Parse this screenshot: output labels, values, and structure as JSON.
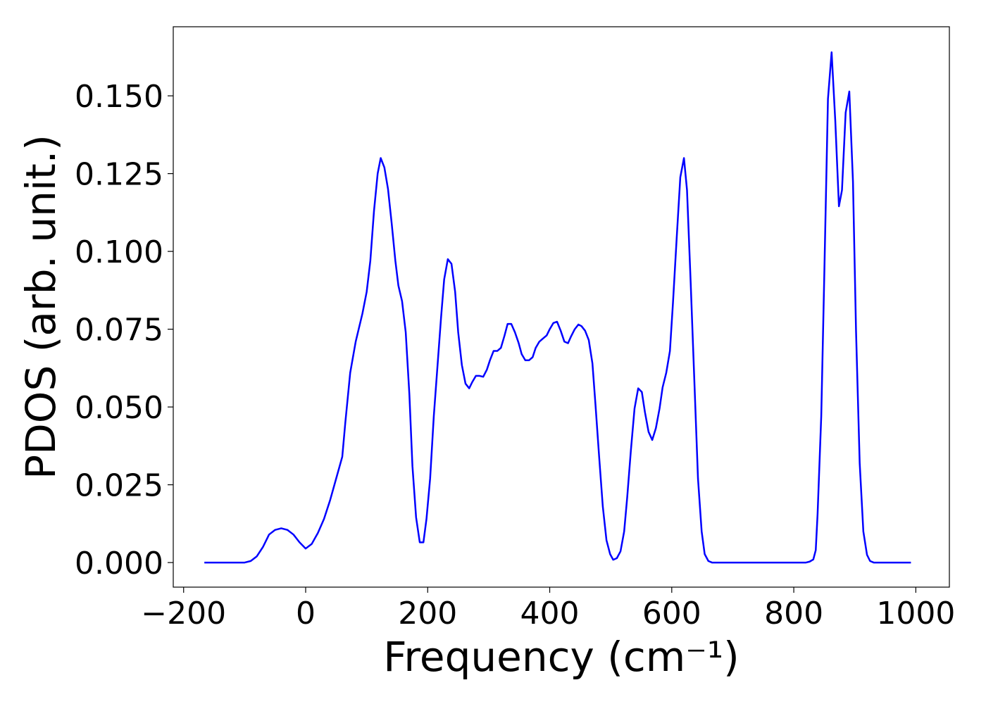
{
  "chart_data": {
    "type": "line",
    "xlabel": "Frequency (cm⁻¹)",
    "ylabel": "PDOS (arb. unit.)",
    "color": "#0000ff",
    "x": [
      -166,
      -100,
      -90,
      -80,
      -70,
      -60,
      -50,
      -40,
      -30,
      -20,
      -10,
      0,
      10,
      20,
      30,
      40,
      50,
      60,
      65,
      73,
      82,
      93,
      100,
      106,
      112,
      118,
      123,
      129,
      135,
      141,
      147,
      152,
      158,
      164,
      170,
      175,
      181,
      187,
      193,
      198,
      204,
      210,
      216,
      222,
      227,
      233,
      239,
      245,
      250,
      256,
      262,
      268,
      273,
      279,
      285,
      291,
      297,
      302,
      308,
      314,
      320,
      326,
      331,
      337,
      343,
      349,
      354,
      360,
      366,
      372,
      377,
      383,
      389,
      395,
      400,
      406,
      412,
      418,
      424,
      430,
      435,
      441,
      447,
      452,
      458,
      464,
      470,
      475,
      481,
      487,
      493,
      499,
      504,
      510,
      516,
      522,
      527,
      533,
      539,
      545,
      551,
      556,
      562,
      568,
      574,
      580,
      585,
      591,
      597,
      602,
      608,
      614,
      620,
      625,
      631,
      637,
      643,
      649,
      654,
      660,
      666,
      820,
      826,
      832,
      836,
      839,
      845,
      850,
      856,
      862,
      868,
      874,
      879,
      885,
      891,
      897,
      902,
      908,
      914,
      920,
      925,
      931,
      992
    ],
    "values": [
      0,
      0,
      0.0005,
      0.002,
      0.005,
      0.009,
      0.0105,
      0.011,
      0.0105,
      0.009,
      0.0065,
      0.0045,
      0.006,
      0.0095,
      0.014,
      0.02,
      0.027,
      0.034,
      0.045,
      0.061,
      0.071,
      0.08,
      0.087,
      0.097,
      0.113,
      0.125,
      0.13,
      0.127,
      0.12,
      0.109,
      0.097,
      0.089,
      0.084,
      0.074,
      0.054,
      0.031,
      0.0145,
      0.0065,
      0.0065,
      0.014,
      0.027,
      0.047,
      0.063,
      0.079,
      0.091,
      0.0975,
      0.096,
      0.087,
      0.074,
      0.0635,
      0.0575,
      0.056,
      0.058,
      0.06,
      0.06,
      0.0597,
      0.062,
      0.065,
      0.068,
      0.068,
      0.069,
      0.073,
      0.0767,
      0.0767,
      0.074,
      0.0706,
      0.067,
      0.065,
      0.065,
      0.066,
      0.069,
      0.071,
      0.072,
      0.073,
      0.075,
      0.077,
      0.0774,
      0.0745,
      0.071,
      0.0705,
      0.0727,
      0.075,
      0.0765,
      0.076,
      0.0745,
      0.0715,
      0.064,
      0.0507,
      0.034,
      0.018,
      0.0072,
      0.0027,
      0.0009,
      0.0014,
      0.0036,
      0.01,
      0.021,
      0.036,
      0.0495,
      0.056,
      0.0548,
      0.0484,
      0.042,
      0.0394,
      0.0432,
      0.0495,
      0.0563,
      0.061,
      0.068,
      0.0835,
      0.104,
      0.1238,
      0.13,
      0.1197,
      0.09,
      0.0586,
      0.027,
      0.01,
      0.0027,
      0.0005,
      0,
      0,
      0.0003,
      0.001,
      0.004,
      0.0156,
      0.047,
      0.0925,
      0.149,
      0.164,
      0.142,
      0.1145,
      0.1197,
      0.1446,
      0.1514,
      0.1224,
      0.0745,
      0.032,
      0.01,
      0.0025,
      0.0005,
      0,
      0
    ],
    "xlim": [
      -217,
      1055
    ],
    "ylim": [
      -0.0079,
      0.1722
    ],
    "xticks": [
      {
        "value": -200,
        "label": "−200"
      },
      0,
      200,
      400,
      600,
      800,
      1000
    ],
    "yticks": [
      {
        "value": 0,
        "label": "0.000"
      },
      {
        "value": 0.025,
        "label": "0.025"
      },
      {
        "value": 0.05,
        "label": "0.050"
      },
      {
        "value": 0.075,
        "label": "0.075"
      },
      {
        "value": 0.1,
        "label": "0.100"
      },
      {
        "value": 0.125,
        "label": "0.125"
      },
      {
        "value": 0.15,
        "label": "0.150"
      }
    ]
  }
}
